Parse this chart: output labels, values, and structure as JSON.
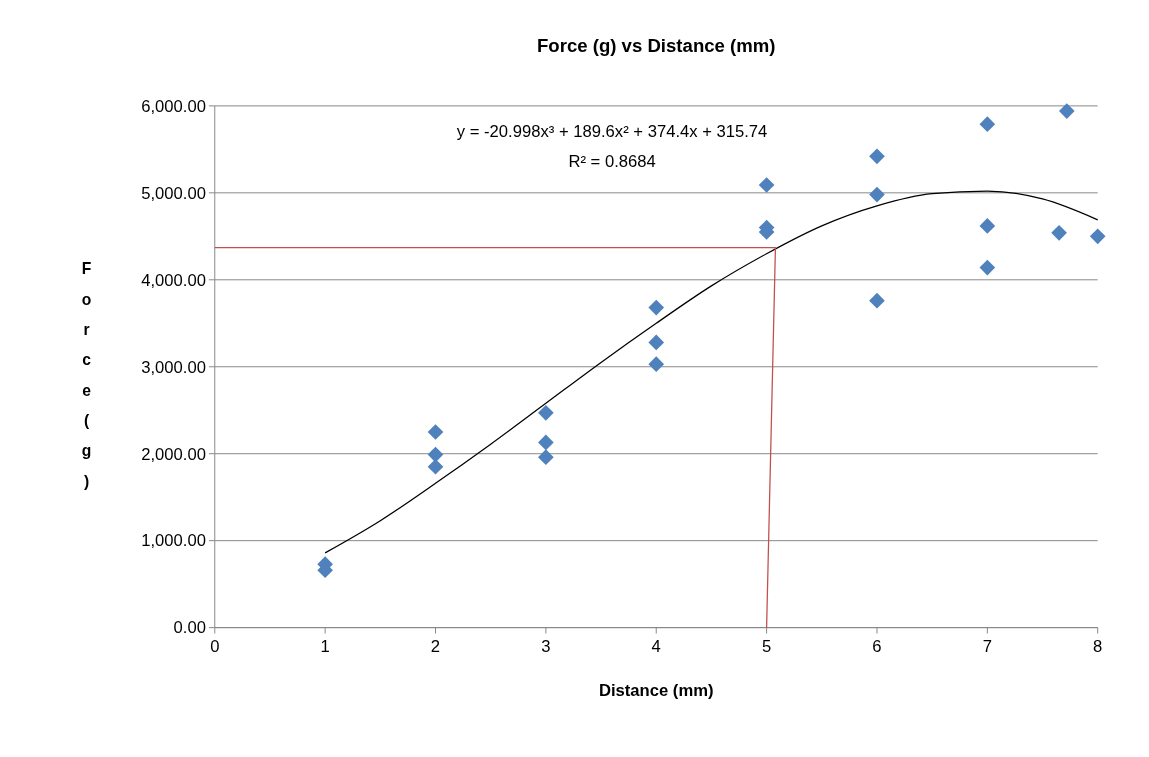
{
  "chart_data": {
    "type": "scatter",
    "title": "Force (g) vs Distance (mm)",
    "xlabel": "Distance (mm)",
    "ylabel": "Force (g)",
    "xlim": [
      0,
      8
    ],
    "xticks": [
      0,
      1,
      2,
      3,
      4,
      5,
      6,
      7,
      8
    ],
    "ylim": [
      0,
      6000
    ],
    "yticks": [
      {
        "value": 0,
        "label": "0.00"
      },
      {
        "value": 1000,
        "label": "1,000.00"
      },
      {
        "value": 2000,
        "label": "2,000.00"
      },
      {
        "value": 3000,
        "label": "3,000.00"
      },
      {
        "value": 4000,
        "label": "4,000.00"
      },
      {
        "value": 5000,
        "label": "5,000.00"
      },
      {
        "value": 6000,
        "label": "6,000.00"
      }
    ],
    "grid": "y",
    "series": [
      {
        "color": "#4f81bd",
        "marker": "diamond",
        "x": [
          1,
          1,
          2,
          2,
          2,
          3,
          3,
          3,
          4,
          4,
          4,
          5,
          5,
          5,
          6,
          6,
          6,
          7,
          7,
          7,
          7.65,
          7.72,
          8
        ],
        "values": [
          730,
          660,
          2250,
          1990,
          1850,
          2470,
          2130,
          1960,
          3680,
          3280,
          3030,
          5090,
          4600,
          4550,
          5420,
          4980,
          3760,
          5790,
          4620,
          4140,
          4540,
          5940,
          4500
        ]
      },
      {
        "type": "line",
        "color": "#000000",
        "marker": "none",
        "x": [
          1,
          1.5,
          2,
          2.5,
          3,
          3.5,
          4,
          4.5,
          5,
          5.5,
          6,
          6.5,
          7,
          7.5,
          8
        ],
        "values": [
          860,
          1230,
          1660,
          2110,
          2580,
          3050,
          3500,
          3930,
          4300,
          4620,
          4850,
          4990,
          5020,
          4930,
          4690
        ]
      },
      {
        "type": "line",
        "color": "#c0504d",
        "marker": "none",
        "x": [
          0,
          5.08,
          5
        ],
        "values": [
          4370,
          4370,
          0
        ]
      }
    ],
    "annotations": [
      "y = -20.998x³ + 189.6x² + 374.4x + 315.74",
      "R² = 0.8684"
    ]
  }
}
